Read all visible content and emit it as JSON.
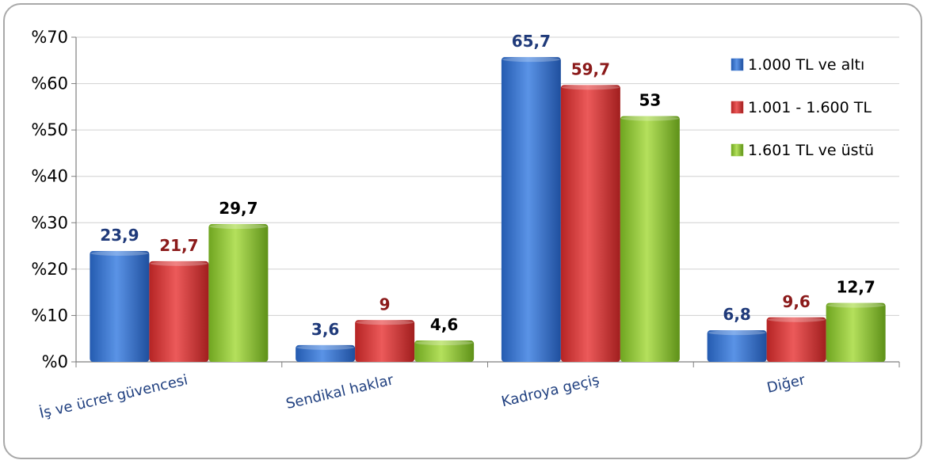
{
  "chart_data": {
    "type": "bar",
    "categories": [
      "İş ve ücret  güvencesi",
      "Sendikal haklar",
      "Kadroya geçiş",
      "Diğer"
    ],
    "series": [
      {
        "name": "1.000 TL ve altı",
        "values": [
          23.9,
          3.6,
          65.7,
          6.8
        ],
        "labels": [
          "23,9",
          "3,6",
          "65,7",
          "6,8"
        ],
        "color": "#3a73c9",
        "label_color": "#1f3a7a"
      },
      {
        "name": "1.001 - 1.600 TL",
        "values": [
          21.7,
          9,
          59.7,
          9.6
        ],
        "labels": [
          "21,7",
          "9",
          "59,7",
          "9,6"
        ],
        "color": "#d23a3a",
        "label_color": "#8b1a1a"
      },
      {
        "name": "1.601 TL ve üstü",
        "values": [
          29.7,
          4.6,
          53,
          12.7
        ],
        "labels": [
          "29,7",
          "4,6",
          "53",
          "12,7"
        ],
        "color": "#8fc63a",
        "label_color": "#000000"
      }
    ],
    "ylim": [
      0,
      70
    ],
    "yticks": [
      0,
      10,
      20,
      30,
      40,
      50,
      60,
      70
    ],
    "ytick_labels": [
      "%0",
      "%10",
      "%20",
      "%30",
      "%40",
      "%50",
      "%60",
      "%70"
    ],
    "grid": true,
    "legend_position": "top-right",
    "title": "",
    "xlabel": "",
    "ylabel": ""
  }
}
